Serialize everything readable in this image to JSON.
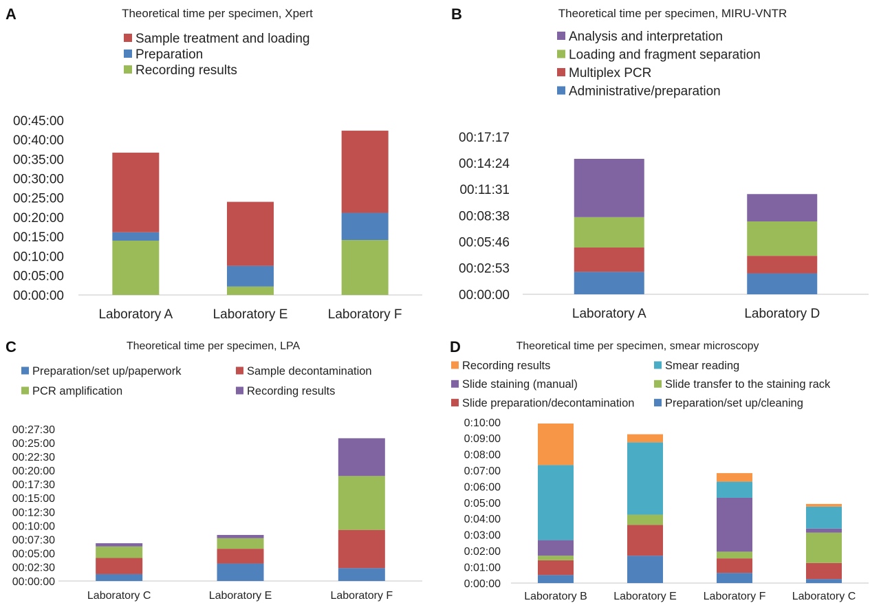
{
  "colors": {
    "blue": "#4f81bd",
    "red": "#c0504d",
    "green": "#9bbb59",
    "purple": "#8064a2",
    "teal": "#4bacc6",
    "orange": "#f79646",
    "axis": "#d9d9d9",
    "text": "#333333"
  },
  "chart_data": [
    {
      "panel": "A",
      "type": "bar",
      "stacked": true,
      "title": "Theoretical time per specimen, Xpert",
      "xlabel": "",
      "ylabel": "",
      "categories": [
        "Laboratory A",
        "Laboratory E",
        "Laboratory F"
      ],
      "yticks": [
        "00:00:00",
        "00:05:00",
        "00:10:00",
        "00:15:00",
        "00:20:00",
        "00:25:00",
        "00:30:00",
        "00:35:00",
        "00:40:00",
        "00:45:00"
      ],
      "ylim_seconds": [
        0,
        2700
      ],
      "legend_order": [
        "Sample treatment and loading",
        "Preparation",
        "Recording results"
      ],
      "series": [
        {
          "name": "Recording results",
          "color": "#9bbb59",
          "values_seconds": [
            840,
            130,
            850
          ]
        },
        {
          "name": "Preparation",
          "color": "#4f81bd",
          "values_seconds": [
            130,
            320,
            420
          ]
        },
        {
          "name": "Sample treatment and loading",
          "color": "#c0504d",
          "values_seconds": [
            1230,
            990,
            1270
          ]
        }
      ]
    },
    {
      "panel": "B",
      "type": "bar",
      "stacked": true,
      "title": "Theoretical time per specimen, MIRU-VNTR",
      "xlabel": "",
      "ylabel": "",
      "categories": [
        "Laboratory A",
        "Laboratory D"
      ],
      "yticks": [
        "00:00:00",
        "00:02:53",
        "00:05:46",
        "00:08:38",
        "00:11:31",
        "00:14:24",
        "00:17:17"
      ],
      "ylim_seconds": [
        0,
        1037
      ],
      "legend_order": [
        "Analysis and interpretation",
        "Loading and fragment separation",
        "Multiplex PCR",
        "Administrative/preparation"
      ],
      "series": [
        {
          "name": "Administrative/preparation",
          "color": "#4f81bd",
          "values_seconds": [
            148,
            138
          ]
        },
        {
          "name": "Multiplex PCR",
          "color": "#c0504d",
          "values_seconds": [
            160,
            115
          ]
        },
        {
          "name": "Loading and fragment separation",
          "color": "#9bbb59",
          "values_seconds": [
            200,
            227
          ]
        },
        {
          "name": "Analysis and interpretation",
          "color": "#8064a2",
          "values_seconds": [
            384,
            180
          ]
        }
      ]
    },
    {
      "panel": "C",
      "type": "bar",
      "stacked": true,
      "title": "Theoretical time per specimen, LPA",
      "xlabel": "",
      "ylabel": "",
      "categories": [
        "Laboratory C",
        "Laboratory E",
        "Laboratory F"
      ],
      "yticks": [
        "00:00:00",
        "00:02:30",
        "00:05:00",
        "00:07:30",
        "00:10:00",
        "00:12:30",
        "00:15:00",
        "00:17:30",
        "00:20:00",
        "00:22:30",
        "00:25:00",
        "00:27:30"
      ],
      "ylim_seconds": [
        0,
        1650
      ],
      "legend_order": [
        "Preparation/set up/paperwork",
        "Sample decontamination",
        "PCR amplification",
        "Recording results"
      ],
      "series": [
        {
          "name": "Preparation/set up/paperwork",
          "color": "#4f81bd",
          "values_seconds": [
            75,
            190,
            140
          ]
        },
        {
          "name": "Sample decontamination",
          "color": "#c0504d",
          "values_seconds": [
            175,
            160,
            415
          ]
        },
        {
          "name": "PCR amplification",
          "color": "#9bbb59",
          "values_seconds": [
            125,
            115,
            585
          ]
        },
        {
          "name": "Recording results",
          "color": "#8064a2",
          "values_seconds": [
            35,
            35,
            410
          ]
        }
      ]
    },
    {
      "panel": "D",
      "type": "bar",
      "stacked": true,
      "title": "Theoretical time per specimen, smear microscopy",
      "xlabel": "",
      "ylabel": "",
      "categories": [
        "Laboratory B",
        "Laboratory E",
        "Laboratory F",
        "Laboratory C"
      ],
      "yticks": [
        "0:00:00",
        "0:01:00",
        "0:02:00",
        "0:03:00",
        "0:04:00",
        "0:05:00",
        "0:06:00",
        "0:07:00",
        "0:08:00",
        "0:09:00",
        "0:10:00"
      ],
      "ylim_seconds": [
        0,
        600
      ],
      "legend_order": [
        "Recording results",
        "Smear reading",
        "Slide staining (manual)",
        "Slide transfer to the staining rack",
        "Slide preparation/decontamination",
        "Preparation/set up/cleaning"
      ],
      "series": [
        {
          "name": "Preparation/set up/cleaning",
          "color": "#4f81bd",
          "values_seconds": [
            30,
            102,
            38,
            15
          ]
        },
        {
          "name": "Slide preparation/decontamination",
          "color": "#c0504d",
          "values_seconds": [
            55,
            115,
            54,
            60
          ]
        },
        {
          "name": "Slide transfer to the staining rack",
          "color": "#9bbb59",
          "values_seconds": [
            17,
            38,
            25,
            113
          ]
        },
        {
          "name": "Slide staining (manual)",
          "color": "#8064a2",
          "values_seconds": [
            58,
            0,
            201,
            15
          ]
        },
        {
          "name": "Smear reading",
          "color": "#4bacc6",
          "values_seconds": [
            280,
            270,
            60,
            82
          ]
        },
        {
          "name": "Recording results",
          "color": "#f79646",
          "values_seconds": [
            155,
            30,
            32,
            10
          ]
        }
      ]
    }
  ],
  "panel_letters": [
    "A",
    "B",
    "C",
    "D"
  ]
}
